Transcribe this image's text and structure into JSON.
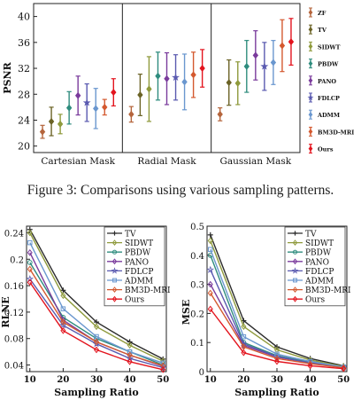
{
  "caption": "Figure 3: Comparisons using various sampling patterns.",
  "chart_data": [
    {
      "type": "errorbar",
      "ylabel": "PSNR",
      "ylim": [
        19,
        42
      ],
      "yticks": [
        20,
        24,
        28,
        32,
        36,
        40
      ],
      "groups": [
        "Cartesian Mask",
        "Radial Mask",
        "Gaussian Mask"
      ],
      "series": [
        {
          "name": "ZF",
          "color": "#b5653c",
          "marker": "diamond",
          "means": [
            22.2,
            24.9,
            24.9
          ],
          "errors": [
            1.0,
            1.2,
            1.0
          ]
        },
        {
          "name": "TV",
          "color": "#6b6326",
          "marker": "diamond",
          "means": [
            23.8,
            27.9,
            29.8
          ],
          "errors": [
            2.2,
            3.2,
            3.5
          ]
        },
        {
          "name": "SIDWT",
          "color": "#8f9a3c",
          "marker": "diamond",
          "means": [
            23.4,
            28.8,
            29.7
          ],
          "errors": [
            1.5,
            5.0,
            3.3
          ]
        },
        {
          "name": "PBDW",
          "color": "#2f8c7e",
          "marker": "diamond",
          "means": [
            25.9,
            30.8,
            32.3
          ],
          "errors": [
            2.5,
            3.7,
            4.0
          ]
        },
        {
          "name": "PANO",
          "color": "#7a3b9c",
          "marker": "diamond",
          "means": [
            27.8,
            30.4,
            34.0
          ],
          "errors": [
            3.0,
            4.0,
            3.8
          ]
        },
        {
          "name": "FDLCP",
          "color": "#5a5ab0",
          "marker": "star",
          "means": [
            26.7,
            30.6,
            32.3
          ],
          "errors": [
            2.9,
            3.5,
            3.7
          ]
        },
        {
          "name": "ADMM",
          "color": "#6a97cf",
          "marker": "diamond",
          "means": [
            25.8,
            29.9,
            32.9
          ],
          "errors": [
            3.1,
            4.3,
            3.4
          ]
        },
        {
          "name": "BM3D-MRI",
          "color": "#d4592f",
          "marker": "diamond",
          "means": [
            26.0,
            31.0,
            35.5
          ],
          "errors": [
            1.2,
            3.5,
            4.0
          ]
        },
        {
          "name": "Ours",
          "color": "#e3141e",
          "marker": "diamond",
          "means": [
            28.3,
            32.0,
            36.1
          ],
          "errors": [
            2.1,
            2.9,
            3.6
          ]
        }
      ]
    },
    {
      "type": "line",
      "xlabel": "Sampling Ratio",
      "ylabel": "RLNE",
      "x": [
        10,
        20,
        30,
        40,
        50
      ],
      "xlim": [
        9,
        51
      ],
      "ylim": [
        0.03,
        0.25
      ],
      "yticks": [
        0.04,
        0.08,
        0.12,
        0.16,
        0.2,
        0.24
      ],
      "ytick_labels": [
        "0.04",
        "0.08",
        "0.12",
        "0.16",
        "0.2",
        "0.24"
      ],
      "xticks": [
        10,
        20,
        30,
        40,
        50
      ],
      "legend": "top-right",
      "series": [
        {
          "name": "TV",
          "color": "#2b2b2b",
          "marker": "plus",
          "values": [
            0.245,
            0.153,
            0.105,
            0.075,
            0.049
          ]
        },
        {
          "name": "SIDWT",
          "color": "#8f9a3c",
          "marker": "diamond",
          "values": [
            0.24,
            0.145,
            0.098,
            0.07,
            0.046
          ]
        },
        {
          "name": "PBDW",
          "color": "#2f8c7e",
          "marker": "circle",
          "values": [
            0.195,
            0.112,
            0.08,
            0.06,
            0.04
          ]
        },
        {
          "name": "PANO",
          "color": "#7a3b9c",
          "marker": "diamond",
          "values": [
            0.21,
            0.108,
            0.075,
            0.055,
            0.038
          ]
        },
        {
          "name": "FDLCP",
          "color": "#5a5ab0",
          "marker": "star",
          "values": [
            0.17,
            0.1,
            0.072,
            0.05,
            0.036
          ]
        },
        {
          "name": "ADMM",
          "color": "#6a97cf",
          "marker": "square",
          "values": [
            0.225,
            0.125,
            0.083,
            0.06,
            0.043
          ]
        },
        {
          "name": "BM3D-MRI",
          "color": "#d4592f",
          "marker": "diamond",
          "values": [
            0.185,
            0.105,
            0.075,
            0.055,
            0.039
          ]
        },
        {
          "name": "Ours",
          "color": "#e3141e",
          "marker": "diamond",
          "values": [
            0.165,
            0.092,
            0.063,
            0.045,
            0.033
          ]
        }
      ]
    },
    {
      "type": "line",
      "xlabel": "Sampling Ratio",
      "ylabel": "MSE",
      "x": [
        10,
        20,
        30,
        40,
        50
      ],
      "xlim": [
        9,
        51
      ],
      "ylim": [
        0,
        0.5
      ],
      "yticks": [
        0,
        0.1,
        0.2,
        0.3,
        0.4,
        0.5
      ],
      "ytick_labels": [
        "0",
        "0.1",
        "0.2",
        "0.3",
        "0.4",
        "0.5"
      ],
      "xticks": [
        10,
        20,
        30,
        40,
        50
      ],
      "legend": "top-right",
      "series": [
        {
          "name": "TV",
          "color": "#2b2b2b",
          "marker": "plus",
          "values": [
            0.47,
            0.175,
            0.085,
            0.045,
            0.02
          ]
        },
        {
          "name": "SIDWT",
          "color": "#8f9a3c",
          "marker": "diamond",
          "values": [
            0.45,
            0.155,
            0.075,
            0.04,
            0.018
          ]
        },
        {
          "name": "PBDW",
          "color": "#2f8c7e",
          "marker": "circle",
          "values": [
            0.4,
            0.1,
            0.055,
            0.032,
            0.015
          ]
        },
        {
          "name": "PANO",
          "color": "#7a3b9c",
          "marker": "diamond",
          "values": [
            0.3,
            0.09,
            0.05,
            0.03,
            0.014
          ]
        },
        {
          "name": "FDLCP",
          "color": "#5a5ab0",
          "marker": "star",
          "values": [
            0.35,
            0.095,
            0.052,
            0.03,
            0.014
          ]
        },
        {
          "name": "ADMM",
          "color": "#6a97cf",
          "marker": "square",
          "values": [
            0.42,
            0.12,
            0.06,
            0.035,
            0.016
          ]
        },
        {
          "name": "BM3D-MRI",
          "color": "#d4592f",
          "marker": "diamond",
          "values": [
            0.27,
            0.085,
            0.045,
            0.027,
            0.013
          ]
        },
        {
          "name": "Ours",
          "color": "#e3141e",
          "marker": "diamond",
          "values": [
            0.215,
            0.065,
            0.035,
            0.02,
            0.01
          ]
        }
      ]
    }
  ]
}
